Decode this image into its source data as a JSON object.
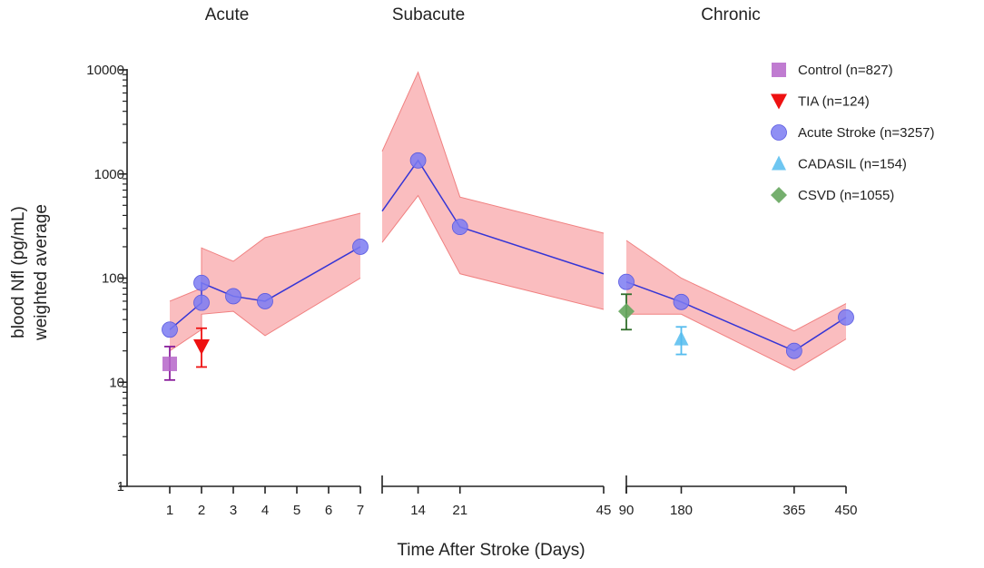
{
  "chart_data": {
    "type": "line",
    "x_title": "Time After Stroke (Days)",
    "y_title_lines": [
      "blood Nfl (pg/mL)",
      "weighted average"
    ],
    "y_scale": "log10",
    "y_range": [
      1,
      10000
    ],
    "y_ticks": [
      {
        "value": 1,
        "label": "1"
      },
      {
        "value": 10,
        "label": "10"
      },
      {
        "value": 100,
        "label": "100"
      },
      {
        "value": 1000,
        "label": "1000"
      },
      {
        "value": 10000,
        "label": "10000"
      }
    ],
    "colors": {
      "axis": "#222222",
      "band_fill": "#f9b6b8",
      "band_stroke": "#f08080",
      "line": "#3535d6",
      "stroke_marker": "#7b7bf2",
      "control": "#b565c9",
      "control_err": "#8a1f9c",
      "tia": "#ee1111",
      "cadasil": "#55bcee",
      "csvd": "#66a65e",
      "csvd_err": "#2f6e2a"
    },
    "panels": [
      {
        "id": "acute",
        "title": "Acute",
        "x_ticks": [
          "1",
          "2",
          "3",
          "4",
          "5",
          "6",
          "7"
        ],
        "tick_values": [
          1,
          2,
          3,
          4,
          5,
          6,
          7
        ],
        "band_upper": [
          [
            1,
            60
          ],
          [
            2,
            80
          ],
          [
            2,
            195
          ],
          [
            3,
            145
          ],
          [
            4,
            245
          ],
          [
            7,
            420
          ]
        ],
        "band_lower": [
          [
            1,
            20
          ],
          [
            2,
            32
          ],
          [
            2,
            45
          ],
          [
            3,
            48
          ],
          [
            4,
            28
          ],
          [
            7,
            100
          ]
        ],
        "line": [
          [
            1,
            32
          ],
          [
            2,
            58
          ],
          [
            2,
            90
          ],
          [
            3,
            67
          ],
          [
            4,
            60
          ],
          [
            7,
            200
          ]
        ],
        "markers": [
          [
            1,
            32
          ],
          [
            2,
            58
          ],
          [
            2,
            90
          ],
          [
            3,
            67
          ],
          [
            4,
            60
          ],
          [
            7,
            200
          ]
        ]
      },
      {
        "id": "subacute",
        "title": "Subacute",
        "x_ticks": [
          "14",
          "21",
          "45"
        ],
        "tick_values": [
          14,
          21,
          45
        ],
        "band_upper": [
          [
            8,
            1650
          ],
          [
            14,
            9500
          ],
          [
            21,
            600
          ],
          [
            45,
            270
          ]
        ],
        "band_lower": [
          [
            8,
            220
          ],
          [
            14,
            620
          ],
          [
            21,
            110
          ],
          [
            45,
            50
          ]
        ],
        "line": [
          [
            8,
            440
          ],
          [
            14,
            1350
          ],
          [
            21,
            310
          ],
          [
            45,
            110
          ]
        ],
        "markers": [
          [
            14,
            1350
          ],
          [
            21,
            310
          ]
        ]
      },
      {
        "id": "chronic",
        "title": "Chronic",
        "x_ticks": [
          "90",
          "180",
          "365",
          "450"
        ],
        "tick_values": [
          90,
          180,
          365,
          450
        ],
        "band_upper": [
          [
            90,
            230
          ],
          [
            180,
            100
          ],
          [
            365,
            31
          ],
          [
            450,
            57
          ]
        ],
        "band_lower": [
          [
            90,
            45
          ],
          [
            180,
            45
          ],
          [
            365,
            13
          ],
          [
            450,
            26
          ]
        ],
        "line": [
          [
            90,
            92
          ],
          [
            180,
            59
          ],
          [
            365,
            20
          ],
          [
            450,
            42
          ]
        ],
        "markers": [
          [
            90,
            92
          ],
          [
            180,
            59
          ],
          [
            365,
            20
          ],
          [
            450,
            42
          ]
        ]
      }
    ],
    "extra_points": [
      {
        "series": "control",
        "panel": "acute",
        "x": 1,
        "y": 15,
        "err": [
          10.5,
          22
        ]
      },
      {
        "series": "tia",
        "panel": "acute",
        "x": 2,
        "y": 22,
        "err": [
          14,
          33
        ]
      },
      {
        "series": "csvd",
        "panel": "chronic",
        "x": 90,
        "y": 48,
        "err": [
          32,
          70
        ]
      },
      {
        "series": "cadasil",
        "panel": "chronic",
        "x": 180,
        "y": 26,
        "err": [
          18.5,
          34
        ]
      }
    ],
    "legend": [
      {
        "key": "control",
        "label": "Control (n=827)",
        "shape": "square"
      },
      {
        "key": "tia",
        "label": "TIA (n=124)",
        "shape": "triangle-down"
      },
      {
        "key": "stroke",
        "label": "Acute Stroke (n=3257)",
        "shape": "circle"
      },
      {
        "key": "cadasil",
        "label": "CADASIL (n=154)",
        "shape": "triangle-up"
      },
      {
        "key": "csvd",
        "label": "CSVD (n=1055)",
        "shape": "diamond"
      }
    ]
  }
}
